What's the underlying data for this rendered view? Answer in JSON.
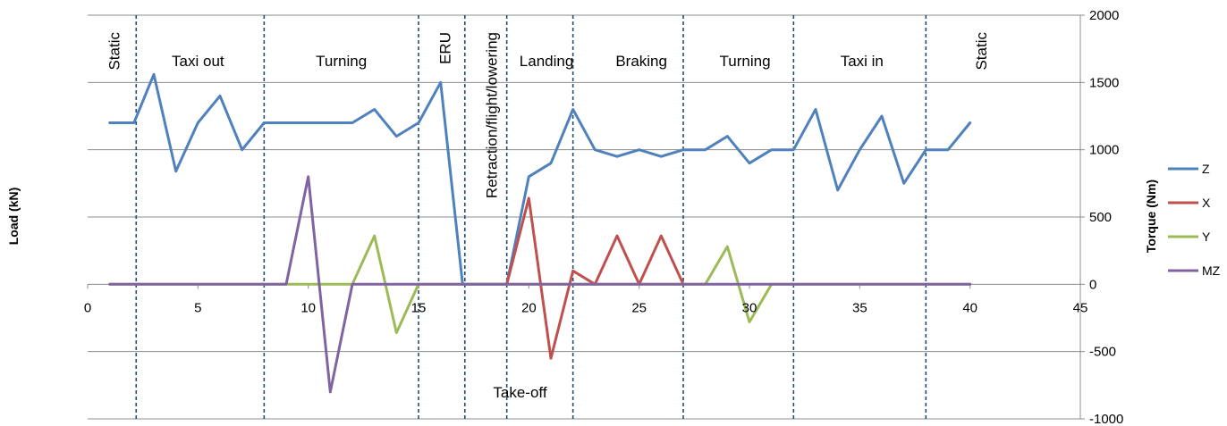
{
  "chart_data": {
    "type": "line",
    "xlim": [
      0,
      45
    ],
    "x_ticks": [
      0,
      5,
      10,
      15,
      20,
      25,
      30,
      35,
      40,
      45
    ],
    "ylim": [
      -1000,
      2000
    ],
    "y_ticks": [
      2000,
      1500,
      1000,
      500,
      0,
      -500,
      -1000
    ],
    "left_axis_label": "Load (kN)",
    "right_axis_label": "Torque (Nm)",
    "grid": "horizontal",
    "legend_position": "right",
    "phase_boundaries": [
      2.2,
      8,
      15,
      17.1,
      19,
      22,
      27,
      32,
      38
    ],
    "phases": [
      {
        "label": "Static",
        "x": 1.2,
        "orientation": "vertical"
      },
      {
        "label": "Taxi out",
        "x": 5,
        "orientation": "horizontal"
      },
      {
        "label": "Turning",
        "x": 11.5,
        "orientation": "horizontal"
      },
      {
        "label": "ERU",
        "x": 16.2,
        "orientation": "vertical"
      },
      {
        "label": "Retraction/flight/lowering",
        "x": 18.3,
        "orientation": "vertical"
      },
      {
        "label": "Landing",
        "x": 20.8,
        "orientation": "horizontal"
      },
      {
        "label": "Braking",
        "x": 25.1,
        "orientation": "horizontal"
      },
      {
        "label": "Turning",
        "x": 29.8,
        "orientation": "horizontal"
      },
      {
        "label": "Taxi in",
        "x": 35.1,
        "orientation": "horizontal"
      },
      {
        "label": "Static",
        "x": 40.5,
        "orientation": "vertical"
      },
      {
        "label": "Take-off",
        "x": 19.6,
        "orientation": "horizontal",
        "position": "bottom"
      }
    ],
    "series": [
      {
        "name": "Z",
        "color": "#4F81BD",
        "points": [
          [
            1,
            1200
          ],
          [
            2.1,
            1200
          ],
          [
            3,
            1560
          ],
          [
            4,
            840
          ],
          [
            5,
            1200
          ],
          [
            6,
            1400
          ],
          [
            7,
            1000
          ],
          [
            8,
            1200
          ],
          [
            9,
            1200
          ],
          [
            10,
            1200
          ],
          [
            11,
            1200
          ],
          [
            12,
            1200
          ],
          [
            13,
            1300
          ],
          [
            14,
            1100
          ],
          [
            15,
            1200
          ],
          [
            16,
            1500
          ],
          [
            17,
            0
          ],
          [
            19,
            0
          ],
          [
            20,
            800
          ],
          [
            21,
            900
          ],
          [
            22,
            1300
          ],
          [
            23,
            1000
          ],
          [
            24,
            950
          ],
          [
            25,
            1000
          ],
          [
            26,
            950
          ],
          [
            27,
            1000
          ],
          [
            28,
            1000
          ],
          [
            29,
            1100
          ],
          [
            30,
            900
          ],
          [
            31,
            1000
          ],
          [
            32,
            1000
          ],
          [
            33,
            1300
          ],
          [
            34,
            700
          ],
          [
            35,
            1000
          ],
          [
            36,
            1250
          ],
          [
            37,
            750
          ],
          [
            38,
            1000
          ],
          [
            39,
            1000
          ],
          [
            40,
            1200
          ]
        ]
      },
      {
        "name": "X",
        "color": "#C0504D",
        "points": [
          [
            19,
            0
          ],
          [
            20,
            640
          ],
          [
            21,
            -550
          ],
          [
            22,
            100
          ],
          [
            23,
            0
          ],
          [
            24,
            360
          ],
          [
            25,
            0
          ],
          [
            26,
            360
          ],
          [
            27,
            0
          ]
        ]
      },
      {
        "name": "Y",
        "color": "#9BBB59",
        "points": [
          [
            1,
            0
          ],
          [
            12,
            0
          ],
          [
            13,
            360
          ],
          [
            14,
            -360
          ],
          [
            15,
            0
          ],
          [
            28,
            0
          ],
          [
            29,
            280
          ],
          [
            30,
            -280
          ],
          [
            31,
            0
          ],
          [
            40,
            0
          ]
        ]
      },
      {
        "name": "MZ",
        "color": "#8064A2",
        "points": [
          [
            1,
            0
          ],
          [
            9,
            0
          ],
          [
            10,
            800
          ],
          [
            11,
            -800
          ],
          [
            12,
            0
          ],
          [
            40,
            0
          ]
        ]
      }
    ]
  }
}
